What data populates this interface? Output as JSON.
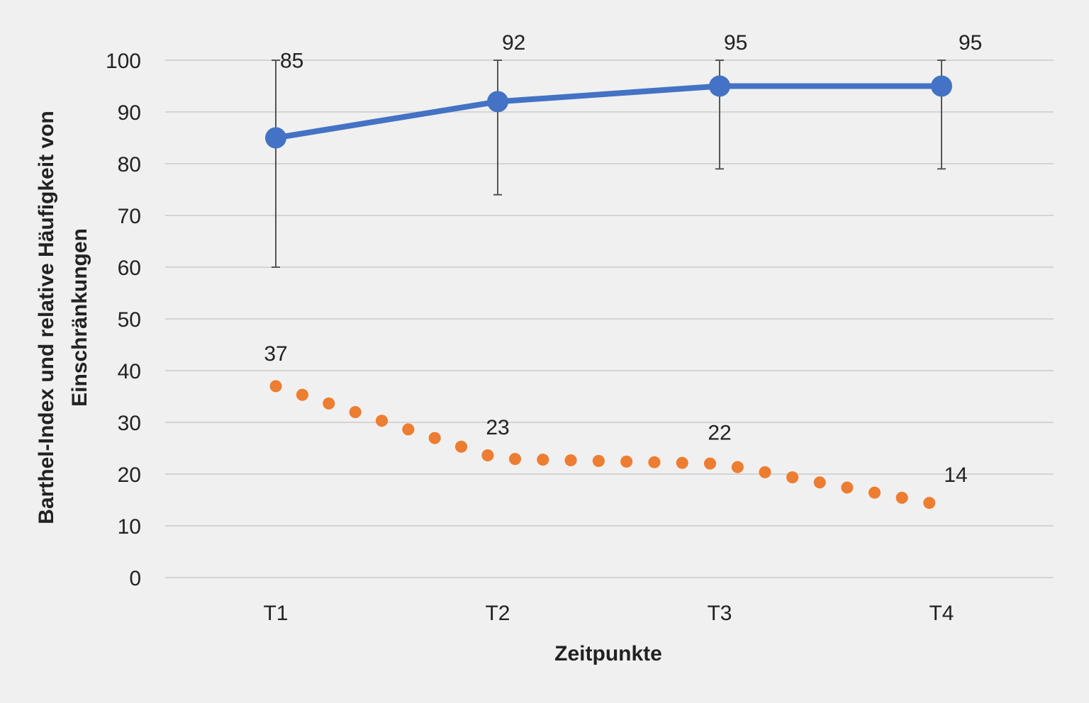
{
  "chart_data": {
    "type": "line",
    "categories": [
      "T1",
      "T2",
      "T3",
      "T4"
    ],
    "xlabel": "Zeitpunkte",
    "ylabel_lines": [
      "Barthel-Index und relative Häufigkeit von",
      "Einschränkungen"
    ],
    "ylim": [
      0,
      100
    ],
    "yticks": [
      0,
      10,
      20,
      30,
      40,
      50,
      60,
      70,
      80,
      90,
      100
    ],
    "grid": true,
    "series": [
      {
        "values": [
          85,
          92,
          95,
          95
        ],
        "labels": [
          "85",
          "92",
          "95",
          "95"
        ],
        "error_bars": [
          [
            60,
            100
          ],
          [
            74,
            100
          ],
          [
            79,
            100
          ],
          [
            79,
            100
          ]
        ],
        "color": "#4472c4",
        "style": "solid-line-with-markers"
      },
      {
        "values": [
          37,
          23,
          22,
          14
        ],
        "labels": [
          "37",
          "23",
          "22",
          "14"
        ],
        "color": "#ed7d31",
        "style": "dotted-line"
      }
    ]
  },
  "colors": {
    "background": "#f0f0f0",
    "grid": "#d4d4d4",
    "text": "#222222",
    "error_bar": "#555555"
  }
}
